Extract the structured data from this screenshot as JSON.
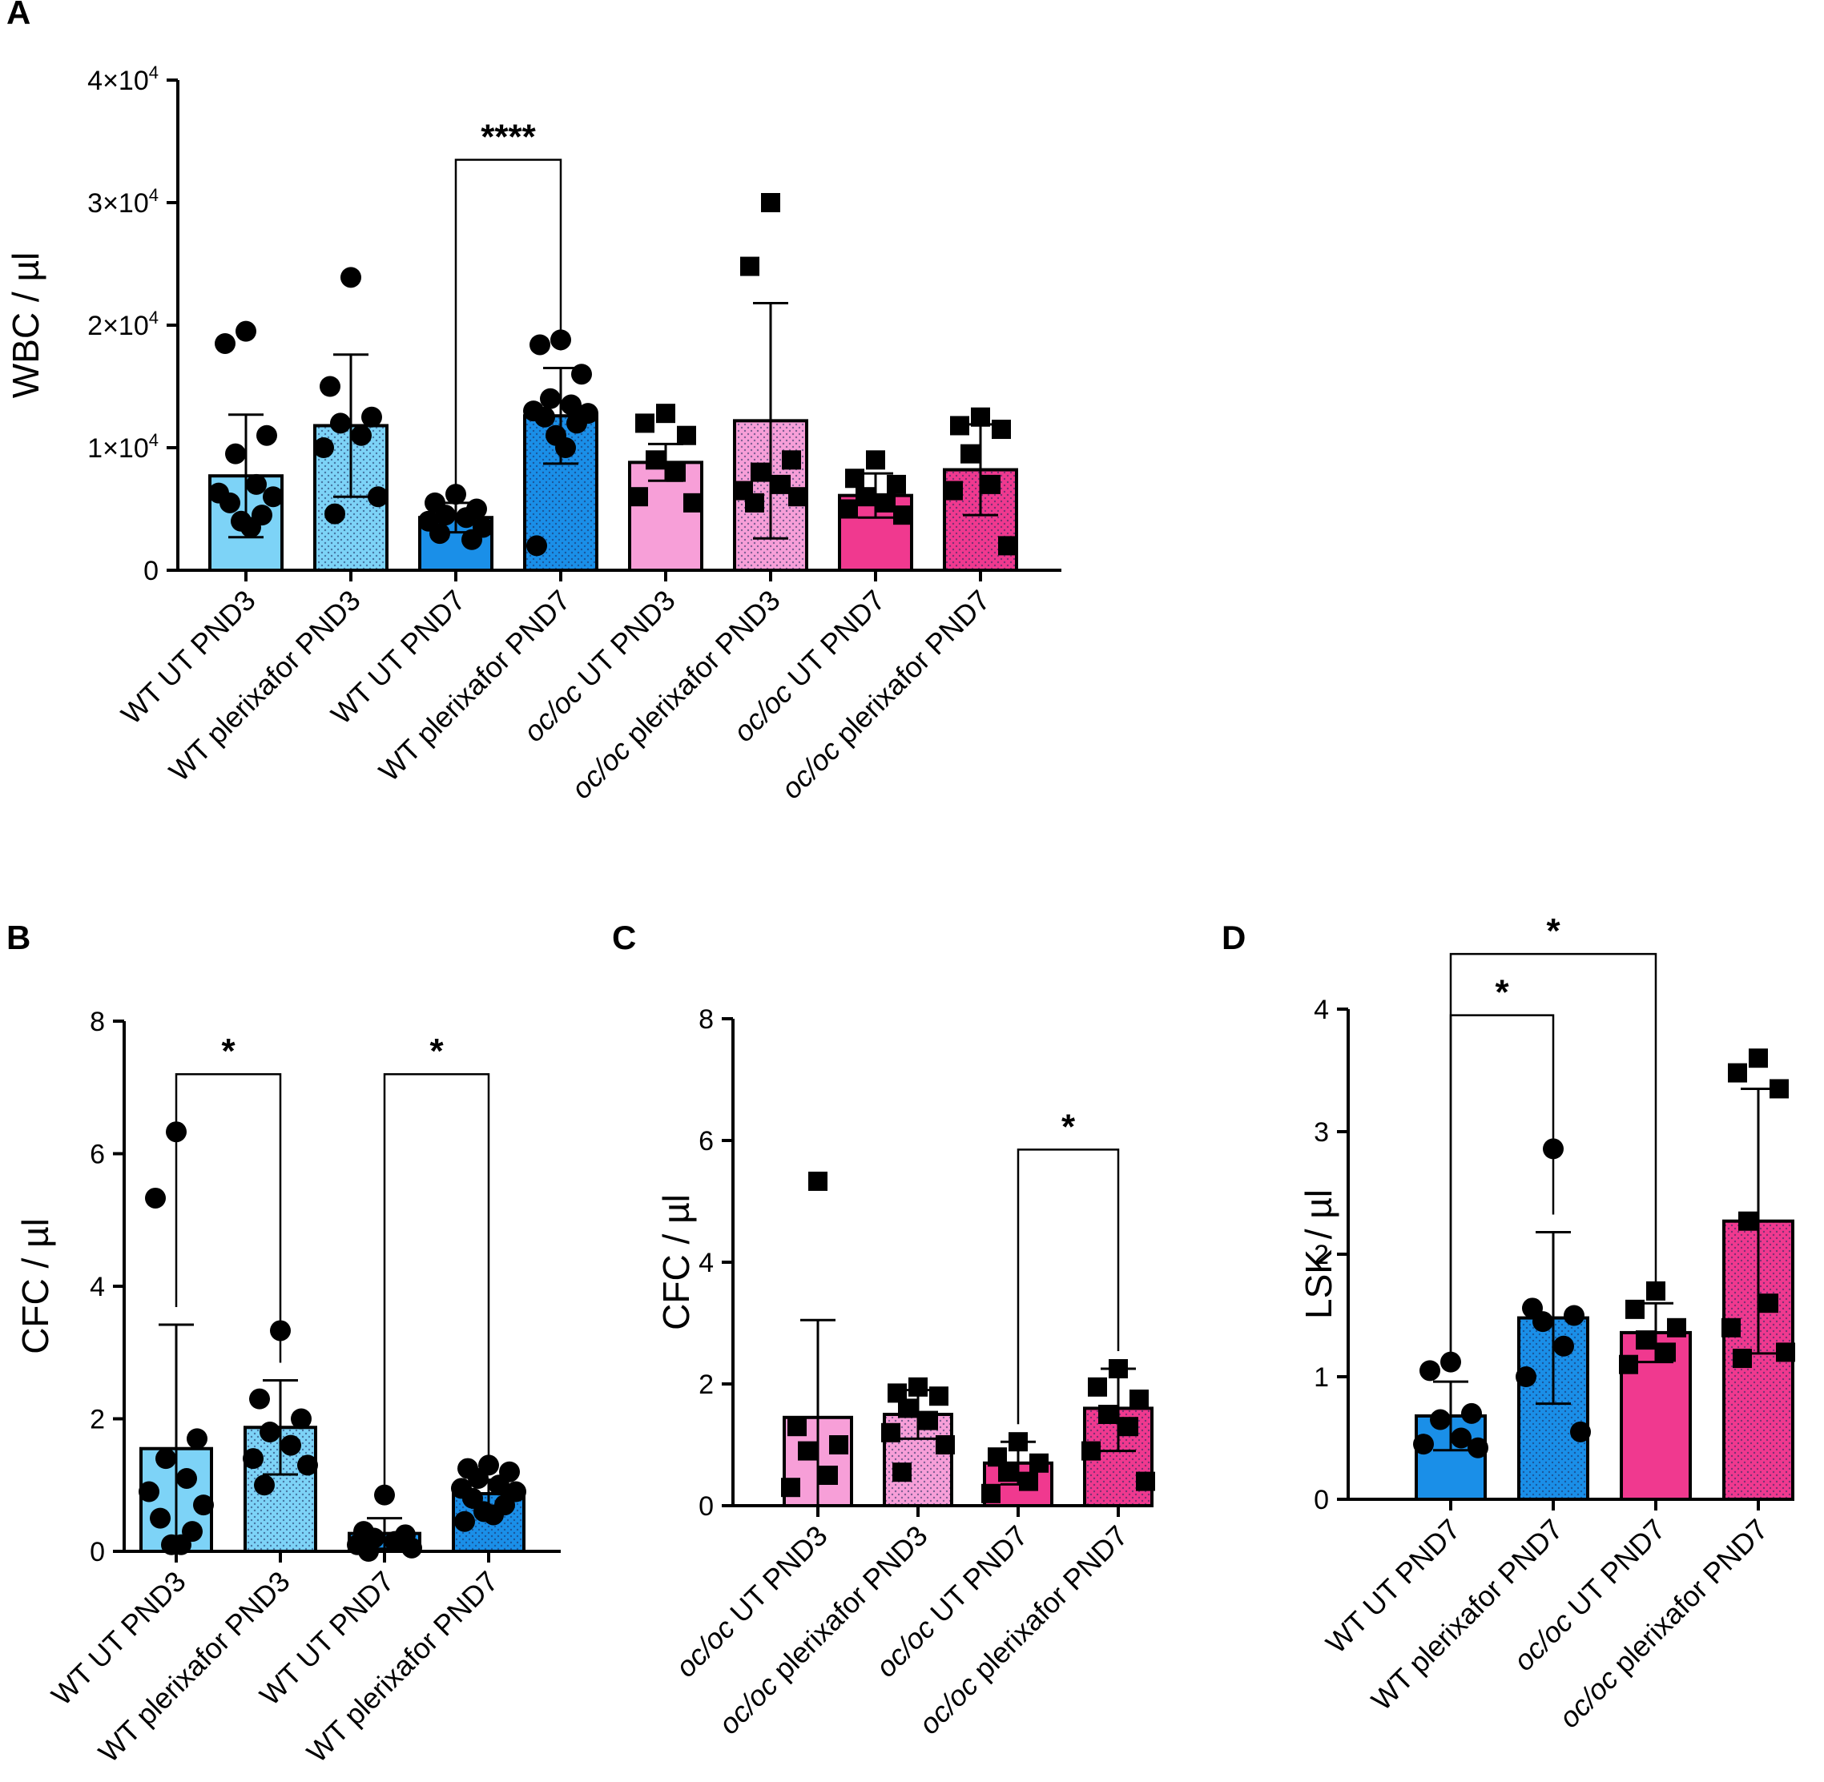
{
  "colors": {
    "wt_pnd3": "#7dd3f7",
    "wt_pnd7": "#1a8fe8",
    "oc_pnd3": "#f79fd8",
    "oc_pnd7": "#f0398f",
    "stroke": "#000000",
    "dot_pattern": "#1c2a5c"
  },
  "chart_data": [
    {
      "id": "A",
      "panel_label": "A",
      "type": "bar",
      "ylabel": "WBC / µl",
      "ylim": [
        0,
        40000
      ],
      "yticks": [
        {
          "value": 0,
          "base": "0",
          "exp": ""
        },
        {
          "value": 10000,
          "base": "1×10",
          "exp": "4"
        },
        {
          "value": 20000,
          "base": "2×10",
          "exp": "4"
        },
        {
          "value": 30000,
          "base": "3×10",
          "exp": "4"
        },
        {
          "value": 40000,
          "base": "4×10",
          "exp": "4"
        }
      ],
      "categories": [
        {
          "pre": "",
          "post": "WT UT PND3",
          "fill": "wt_pnd3",
          "pattern": false,
          "marker": "circle",
          "mean": 7700,
          "sd_high": 12700,
          "sd_low": 2700,
          "points": [
            19500,
            18500,
            11000,
            9500,
            7000,
            6300,
            6000,
            5500,
            4500,
            4000,
            3500
          ]
        },
        {
          "pre": "",
          "post": "WT plerixafor PND3",
          "fill": "wt_pnd3",
          "pattern": true,
          "marker": "circle",
          "mean": 11800,
          "sd_high": 17600,
          "sd_low": 6000,
          "points": [
            23900,
            15000,
            12500,
            12000,
            11000,
            10000,
            6000,
            4600
          ]
        },
        {
          "pre": "",
          "post": "WT UT PND7",
          "fill": "wt_pnd7",
          "pattern": false,
          "marker": "circle",
          "mean": 4300,
          "sd_high": 5500,
          "sd_low": 3100,
          "points": [
            6200,
            5500,
            5000,
            4500,
            4300,
            4000,
            3500,
            3000,
            2500
          ]
        },
        {
          "pre": "",
          "post": "WT plerixafor PND7",
          "fill": "wt_pnd7",
          "pattern": true,
          "marker": "circle",
          "mean": 12600,
          "sd_high": 16500,
          "sd_low": 8700,
          "points": [
            18800,
            18400,
            16000,
            14000,
            13500,
            13000,
            12800,
            12500,
            12000,
            11000,
            10000,
            2000
          ]
        },
        {
          "pre": "oc/oc",
          "post": " UT PND3",
          "fill": "oc_pnd3",
          "pattern": false,
          "marker": "square",
          "mean": 8800,
          "sd_high": 10300,
          "sd_low": 7300,
          "points": [
            12800,
            12000,
            11000,
            9000,
            8000,
            6000,
            5500
          ]
        },
        {
          "pre": "oc/oc",
          "post": " plerixafor PND3",
          "fill": "oc_pnd3",
          "pattern": true,
          "marker": "square",
          "mean": 12200,
          "sd_high": 21800,
          "sd_low": 2600,
          "points": [
            30000,
            24800,
            9000,
            8000,
            7000,
            6500,
            6000,
            5500
          ]
        },
        {
          "pre": "oc/oc",
          "post": " UT PND7",
          "fill": "oc_pnd7",
          "pattern": false,
          "marker": "square",
          "mean": 6100,
          "sd_high": 7900,
          "sd_low": 4300,
          "points": [
            9000,
            7500,
            7000,
            6000,
            5500,
            5000,
            4500
          ]
        },
        {
          "pre": "oc/oc",
          "post": " plerixafor PND7",
          "fill": "oc_pnd7",
          "pattern": true,
          "marker": "square",
          "mean": 8200,
          "sd_high": 11900,
          "sd_low": 4500,
          "points": [
            12500,
            11800,
            11500,
            9500,
            7000,
            6500,
            2000
          ]
        }
      ],
      "significance": [
        {
          "from": 2,
          "to": 3,
          "label": "****",
          "y": 33500
        }
      ]
    },
    {
      "id": "B",
      "panel_label": "B",
      "type": "bar",
      "ylabel": "CFC / µl",
      "ylim": [
        0,
        8
      ],
      "yticks": [
        {
          "value": 0,
          "base": "0",
          "exp": ""
        },
        {
          "value": 2,
          "base": "2",
          "exp": ""
        },
        {
          "value": 4,
          "base": "4",
          "exp": ""
        },
        {
          "value": 6,
          "base": "6",
          "exp": ""
        },
        {
          "value": 8,
          "base": "8",
          "exp": ""
        }
      ],
      "categories": [
        {
          "pre": "",
          "post": "WT UT PND3",
          "fill": "wt_pnd3",
          "pattern": false,
          "marker": "circle",
          "mean": 1.55,
          "sd_high": 3.42,
          "sd_low": 0,
          "points": [
            6.33,
            5.33,
            1.7,
            1.4,
            1.1,
            0.9,
            0.7,
            0.5,
            0.3,
            0.1,
            0.1
          ]
        },
        {
          "pre": "",
          "post": "WT plerixafor PND3",
          "fill": "wt_pnd3",
          "pattern": true,
          "marker": "circle",
          "mean": 1.87,
          "sd_high": 2.58,
          "sd_low": 1.16,
          "points": [
            3.33,
            2.3,
            2.0,
            1.8,
            1.6,
            1.4,
            1.3,
            1.0
          ]
        },
        {
          "pre": "",
          "post": "WT UT PND7",
          "fill": "wt_pnd7",
          "pattern": false,
          "marker": "circle",
          "mean": 0.27,
          "sd_high": 0.5,
          "sd_low": 0.04,
          "points": [
            0.85,
            0.3,
            0.25,
            0.2,
            0.15,
            0.1,
            0.05,
            0.0
          ]
        },
        {
          "pre": "",
          "post": "WT plerixafor PND7",
          "fill": "wt_pnd7",
          "pattern": true,
          "marker": "circle",
          "mean": 0.87,
          "sd_high": 1.08,
          "sd_low": 0.66,
          "points": [
            1.3,
            1.25,
            1.2,
            1.1,
            1.0,
            0.95,
            0.9,
            0.8,
            0.7,
            0.6,
            0.55,
            0.45
          ]
        }
      ],
      "significance": [
        {
          "from": 0,
          "to": 1,
          "label": "*",
          "y": 7.2
        },
        {
          "from": 2,
          "to": 3,
          "label": "*",
          "y": 7.2
        }
      ]
    },
    {
      "id": "C",
      "panel_label": "C",
      "type": "bar",
      "ylabel": "CFC / µl",
      "ylim": [
        0,
        8
      ],
      "yticks": [
        {
          "value": 0,
          "base": "0",
          "exp": ""
        },
        {
          "value": 2,
          "base": "2",
          "exp": ""
        },
        {
          "value": 4,
          "base": "4",
          "exp": ""
        },
        {
          "value": 6,
          "base": "6",
          "exp": ""
        },
        {
          "value": 8,
          "base": "8",
          "exp": ""
        }
      ],
      "categories": [
        {
          "pre": "oc/oc",
          "post": " UT PND3",
          "fill": "oc_pnd3",
          "pattern": false,
          "marker": "square",
          "mean": 1.45,
          "sd_high": 3.05,
          "sd_low": 0,
          "points": [
            5.33,
            1.3,
            1.0,
            0.9,
            0.5,
            0.3
          ]
        },
        {
          "pre": "oc/oc",
          "post": " plerixafor PND3",
          "fill": "oc_pnd3",
          "pattern": true,
          "marker": "square",
          "mean": 1.5,
          "sd_high": 1.9,
          "sd_low": 1.1,
          "points": [
            1.95,
            1.85,
            1.8,
            1.6,
            1.4,
            1.2,
            1.0,
            0.55
          ]
        },
        {
          "pre": "oc/oc",
          "post": " UT PND7",
          "fill": "oc_pnd7",
          "pattern": false,
          "marker": "square",
          "mean": 0.7,
          "sd_high": 1.05,
          "sd_low": 0.35,
          "points": [
            1.05,
            0.8,
            0.7,
            0.55,
            0.4,
            0.2
          ]
        },
        {
          "pre": "oc/oc",
          "post": " plerixafor PND7",
          "fill": "oc_pnd7",
          "pattern": true,
          "marker": "square",
          "mean": 1.6,
          "sd_high": 2.25,
          "sd_low": 0.9,
          "points": [
            2.25,
            1.95,
            1.75,
            1.5,
            1.3,
            0.9,
            0.4
          ]
        }
      ],
      "significance": [
        {
          "from": 2,
          "to": 3,
          "label": "*",
          "y": 5.85
        }
      ]
    },
    {
      "id": "D",
      "panel_label": "D",
      "type": "bar",
      "ylabel": "LSK / µl",
      "ylim": [
        0,
        4
      ],
      "yticks": [
        {
          "value": 0,
          "base": "0",
          "exp": ""
        },
        {
          "value": 1,
          "base": "1",
          "exp": ""
        },
        {
          "value": 2,
          "base": "2",
          "exp": ""
        },
        {
          "value": 3,
          "base": "3",
          "exp": ""
        },
        {
          "value": 4,
          "base": "4",
          "exp": ""
        }
      ],
      "categories": [
        {
          "pre": "",
          "post": "WT UT PND7",
          "fill": "wt_pnd7",
          "pattern": false,
          "marker": "circle",
          "mean": 0.68,
          "sd_high": 0.96,
          "sd_low": 0.4,
          "points": [
            1.12,
            1.05,
            0.7,
            0.65,
            0.5,
            0.45,
            0.42
          ]
        },
        {
          "pre": "",
          "post": "WT plerixafor PND7",
          "fill": "wt_pnd7",
          "pattern": true,
          "marker": "circle",
          "mean": 1.48,
          "sd_high": 2.18,
          "sd_low": 0.78,
          "points": [
            2.86,
            1.56,
            1.5,
            1.45,
            1.25,
            1.0,
            0.55
          ]
        },
        {
          "pre": "oc/oc",
          "post": " UT PND7",
          "fill": "oc_pnd7",
          "pattern": false,
          "marker": "square",
          "mean": 1.36,
          "sd_high": 1.6,
          "sd_low": 1.12,
          "points": [
            1.7,
            1.55,
            1.4,
            1.3,
            1.2,
            1.1
          ]
        },
        {
          "pre": "oc/oc",
          "post": " plerixafor PND7",
          "fill": "oc_pnd7",
          "pattern": true,
          "marker": "square",
          "mean": 2.27,
          "sd_high": 3.35,
          "sd_low": 1.19,
          "points": [
            3.6,
            3.48,
            3.35,
            2.27,
            1.6,
            1.4,
            1.2,
            1.15
          ]
        }
      ],
      "significance": [
        {
          "from": 0,
          "to": 1,
          "label": "*",
          "y": 3.95
        },
        {
          "from": 0,
          "to": 2,
          "label": "*",
          "y": 4.45
        }
      ]
    }
  ]
}
